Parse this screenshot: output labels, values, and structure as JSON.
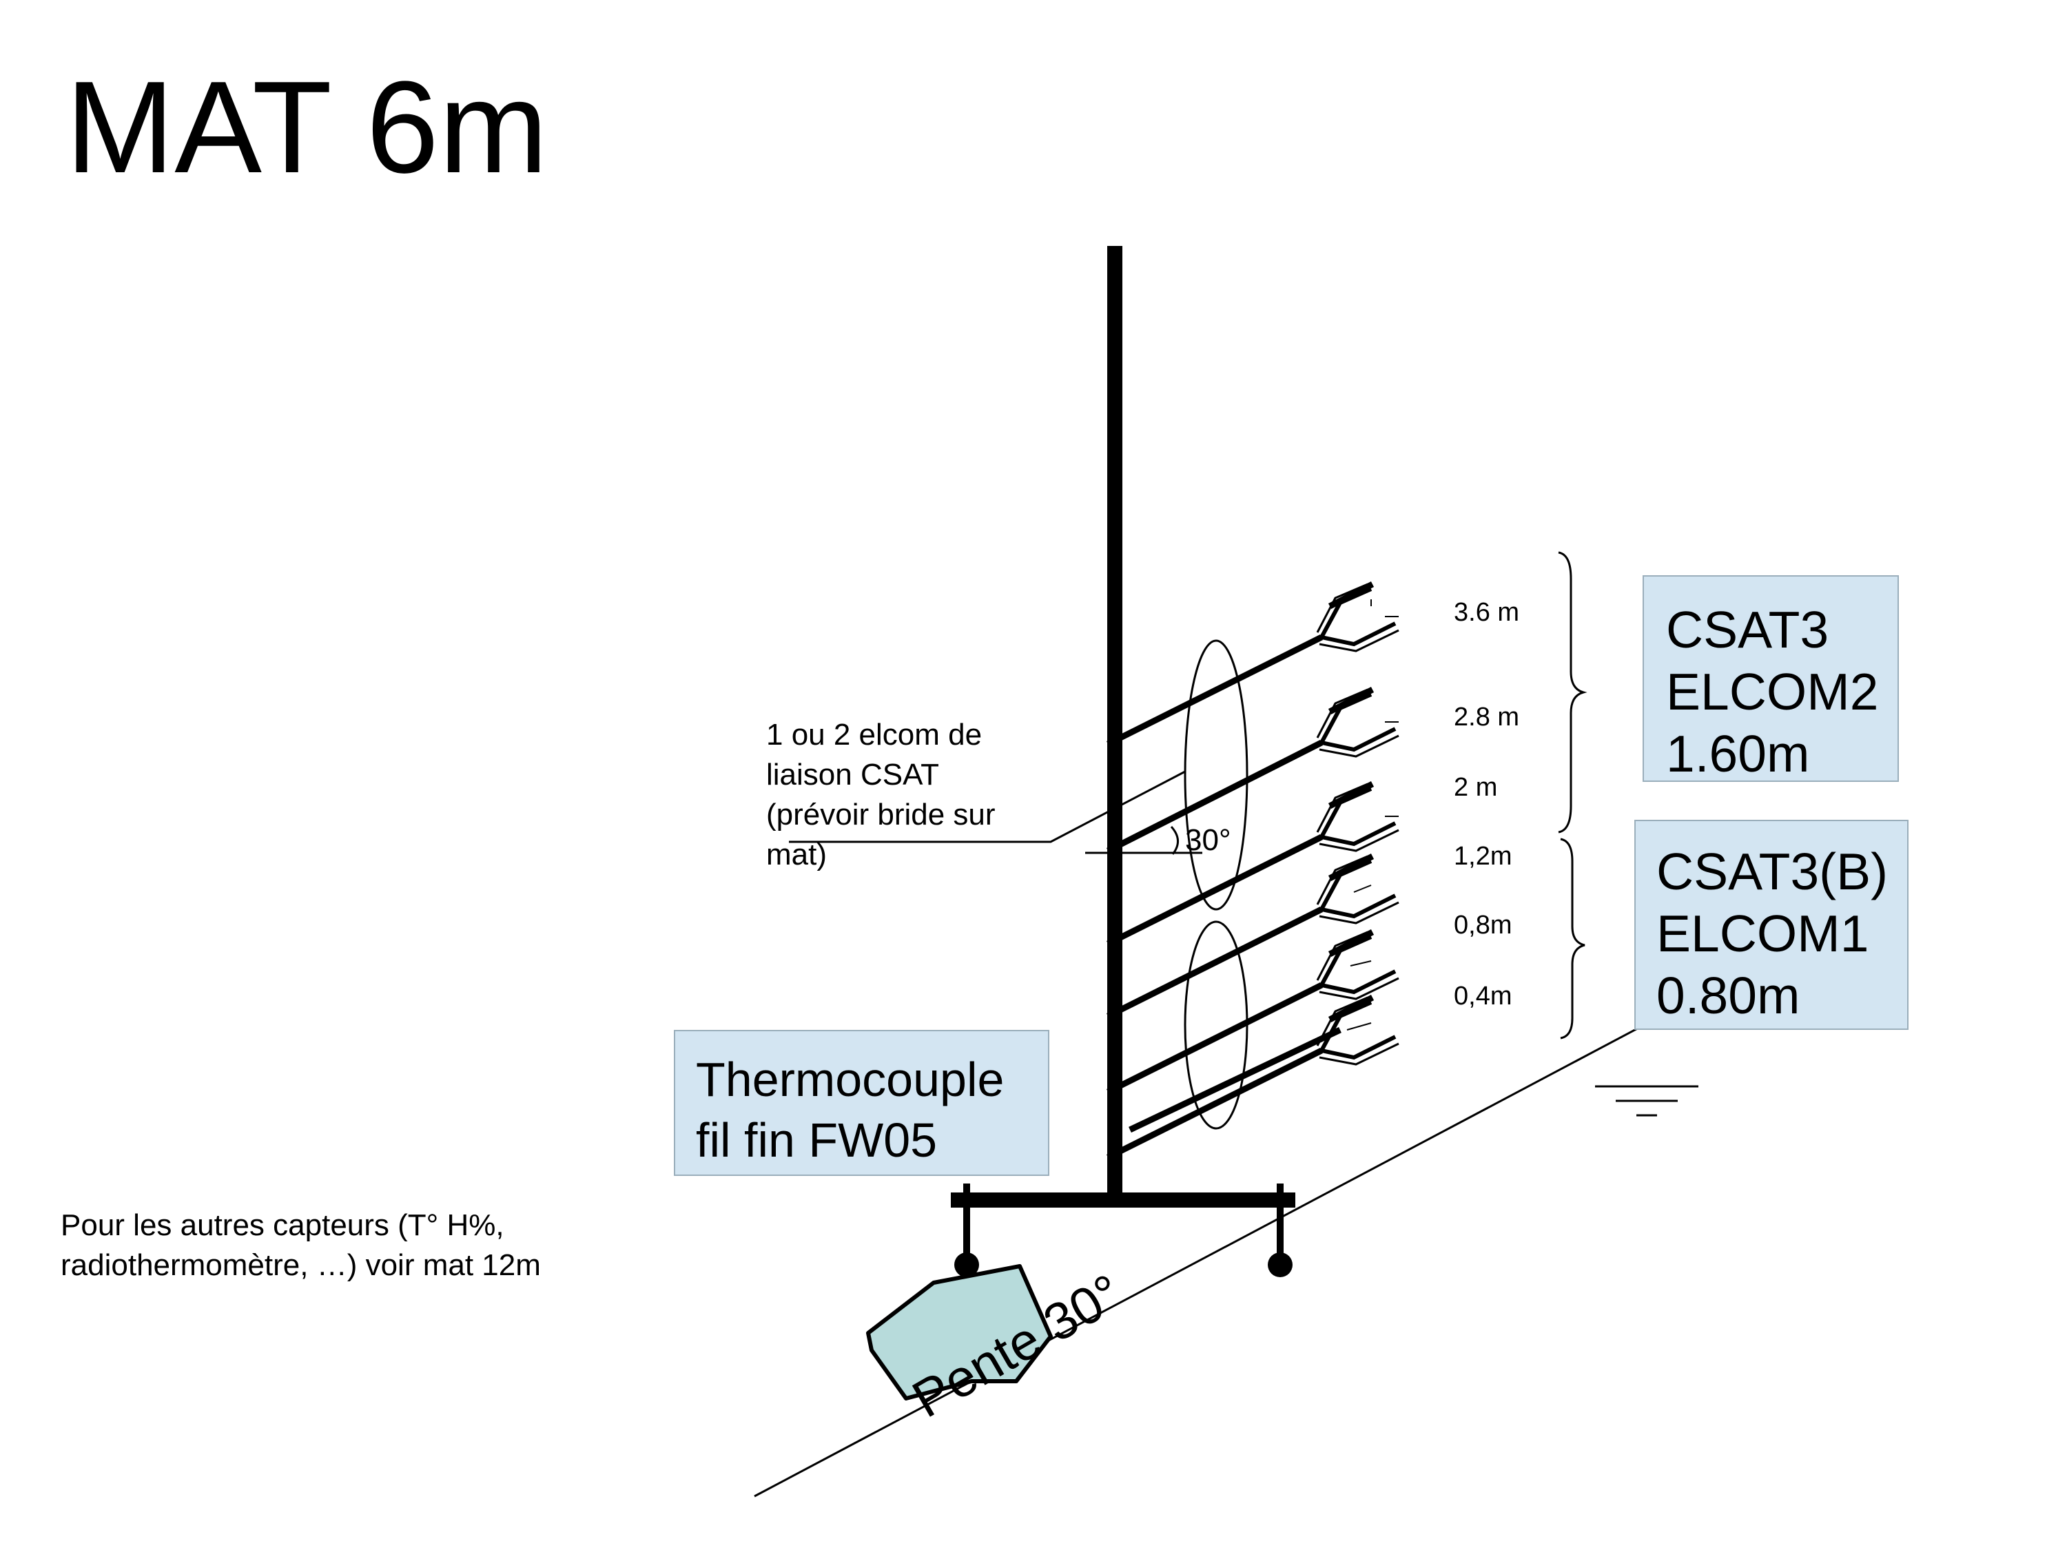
{
  "title": "MAT 6m",
  "annotation_elcom": {
    "lines": [
      "1 ou 2 elcom de",
      "liaison CSAT",
      "(prévoir bride sur",
      "mat)"
    ]
  },
  "annotation_other": {
    "lines": [
      "Pour les autres capteurs (T° H%,",
      "radiothermomètre, …) voir mat 12m"
    ]
  },
  "angle_label": "30°",
  "slope_label": "Pente 30°",
  "heights": [
    "3.6 m",
    "2.8 m",
    "2 m",
    "1,2m",
    "0,8m",
    "0,4m"
  ],
  "box_upper": {
    "lines": [
      "CSAT3",
      "ELCOM2",
      "1.60m"
    ]
  },
  "box_lower": {
    "lines": [
      "CSAT3(B)",
      "ELCOM1",
      "0.80m"
    ]
  },
  "box_thermo": {
    "lines": [
      "Thermocouple",
      "fil fin FW05"
    ]
  },
  "colors": {
    "box_fill": "#d3e5f2",
    "rock_fill": "#b7dbdb",
    "line": "#000000"
  }
}
